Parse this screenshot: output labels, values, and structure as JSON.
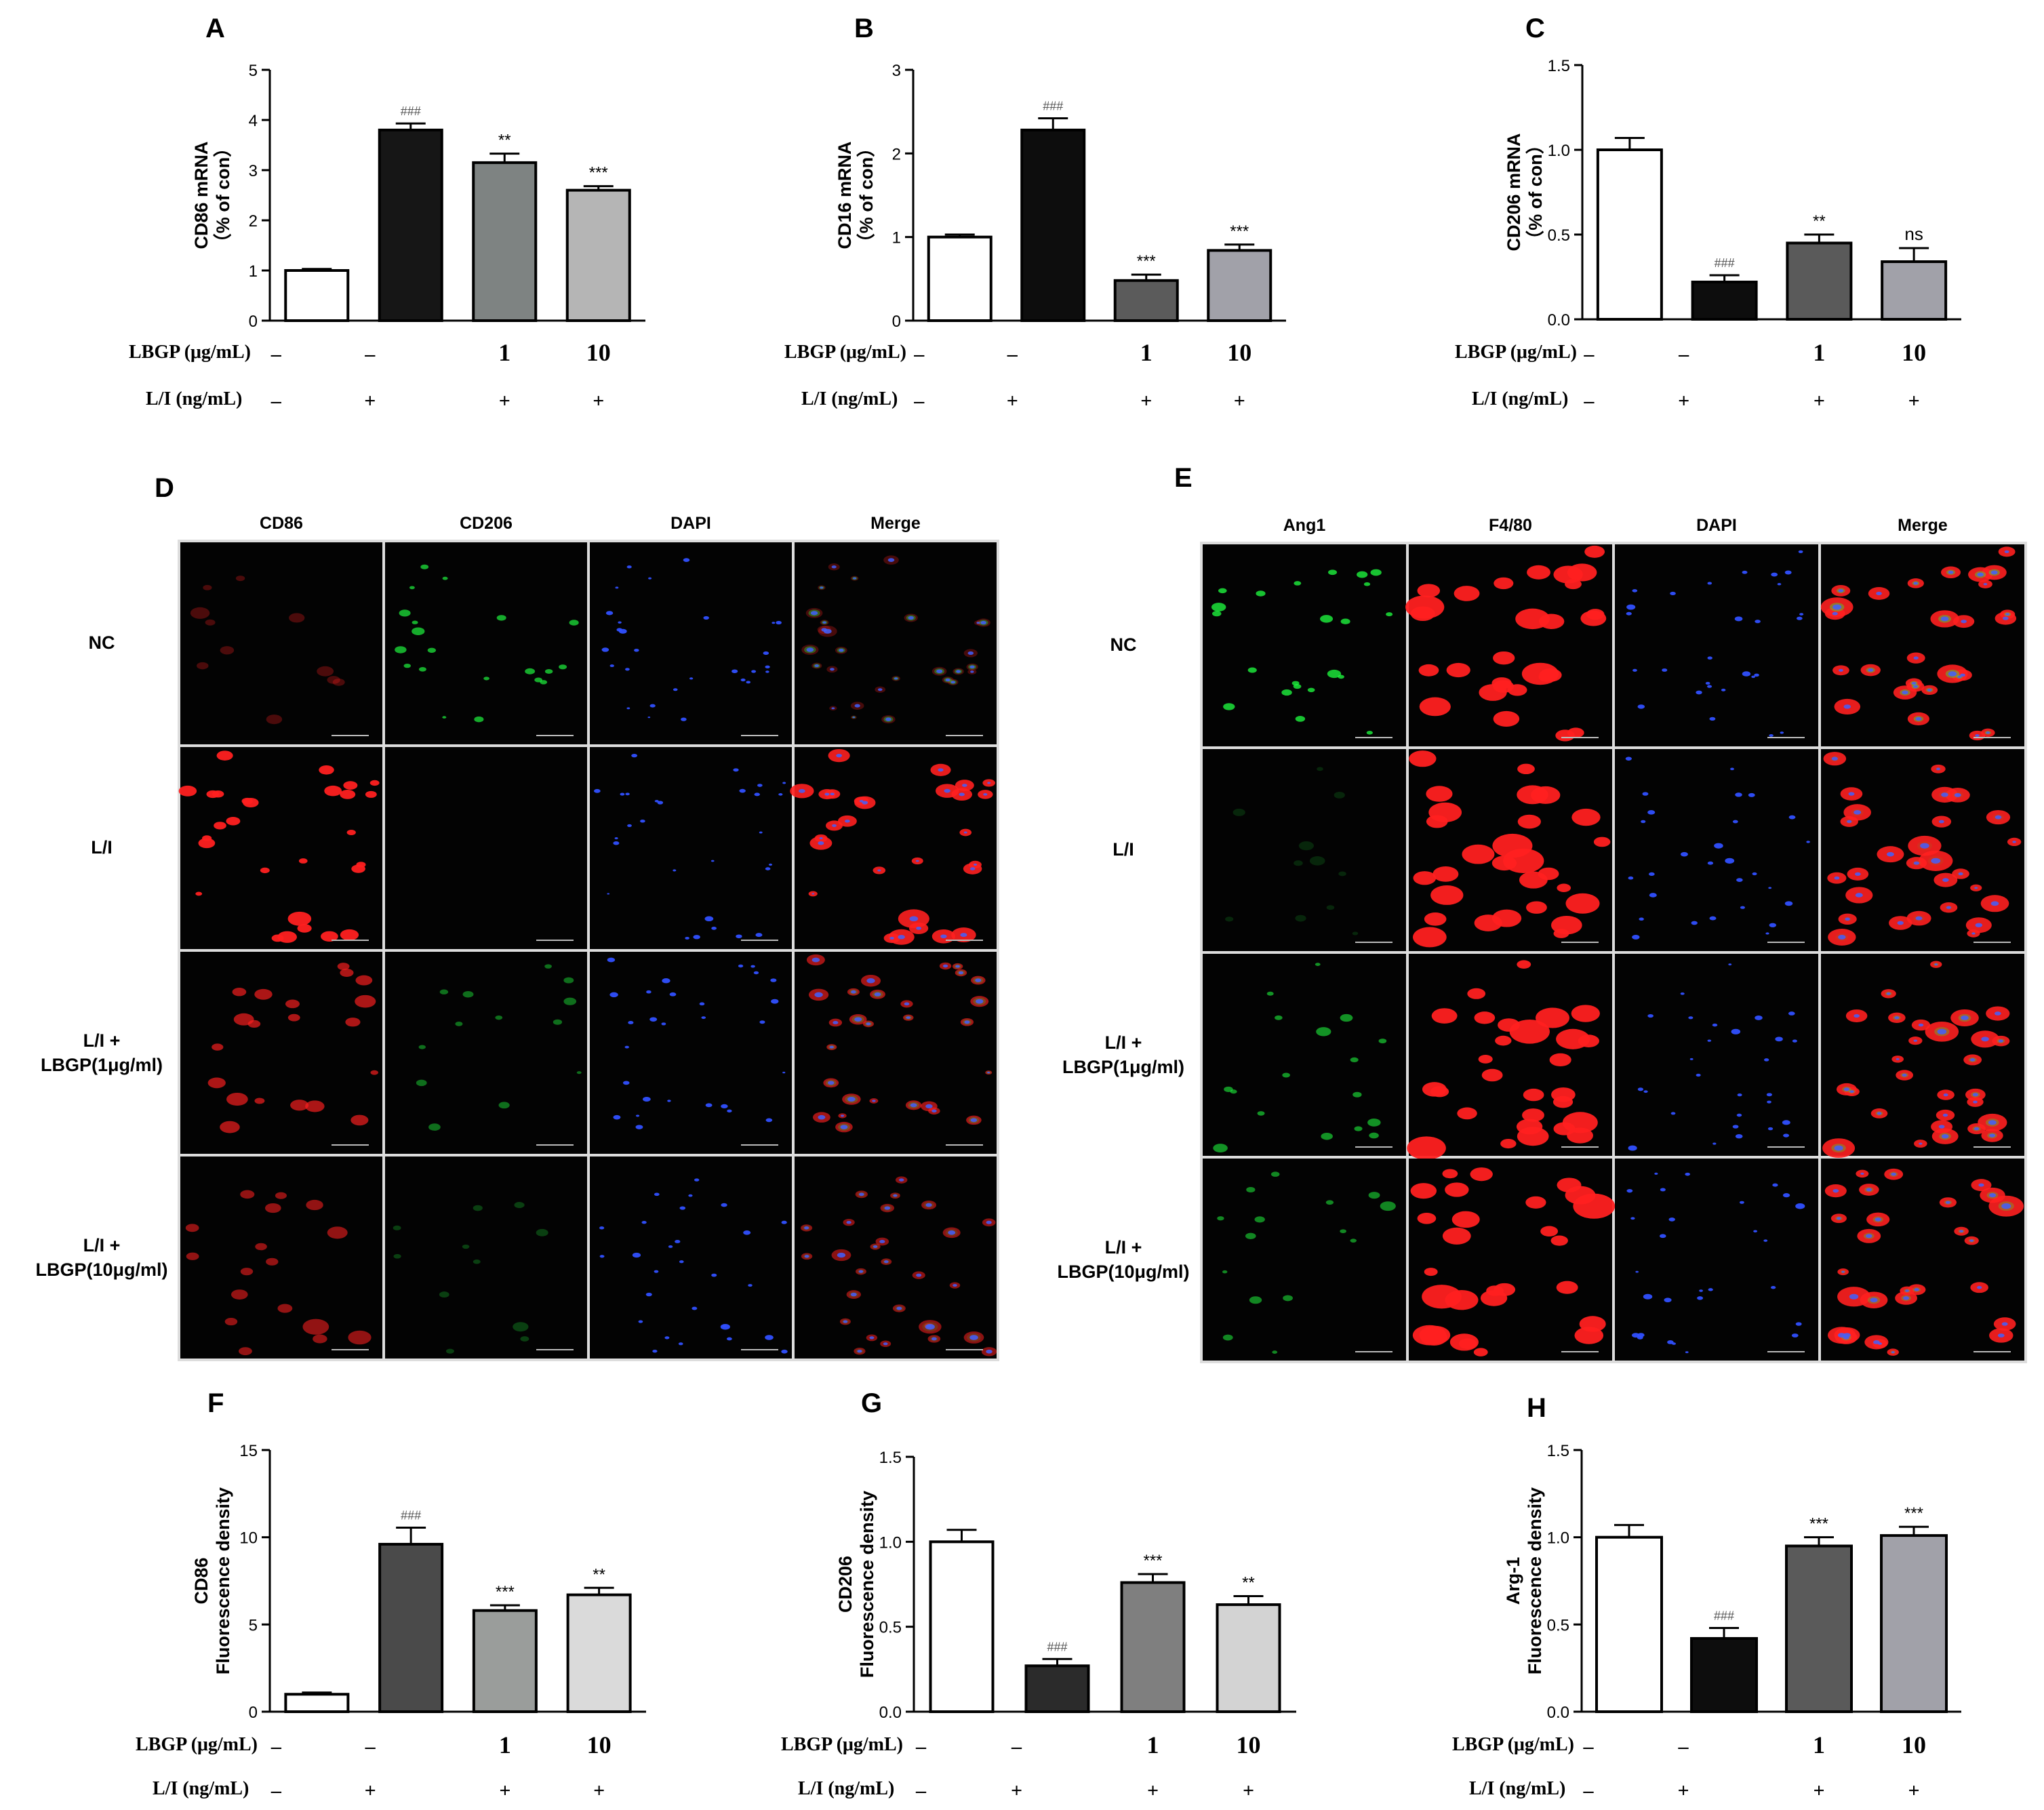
{
  "figure": {
    "x_rows": {
      "lbgp_label": "LBGP (μg/mL)",
      "li_label": "L/I (ng/mL)",
      "lbgp_values": [
        "–",
        "–",
        "1",
        "10"
      ],
      "li_values": [
        "–",
        "+",
        "+",
        "+"
      ]
    }
  },
  "chart_data": [
    {
      "panel": "A",
      "type": "bar",
      "categories": [
        "NC",
        "L/I",
        "L/I + LBGP 1",
        "L/I + LBGP 10"
      ],
      "values": [
        1.0,
        3.8,
        3.15,
        2.6
      ],
      "errors": [
        0.03,
        0.13,
        0.18,
        0.08
      ],
      "ylabel_lines": [
        "CD86 mRNA",
        "（% of con）"
      ],
      "ylim": [
        0,
        5
      ],
      "yticks": [
        "0",
        "1",
        "2",
        "3",
        "4",
        "5"
      ],
      "annotations": [
        "",
        "###",
        "**",
        "***"
      ],
      "colors": [
        "#ffffff",
        "#161616",
        "#7e8382",
        "#b5b5b5"
      ]
    },
    {
      "panel": "B",
      "type": "bar",
      "categories": [
        "NC",
        "L/I",
        "L/I + LBGP 1",
        "L/I + LBGP 10"
      ],
      "values": [
        1.0,
        2.28,
        0.48,
        0.84
      ],
      "errors": [
        0.03,
        0.14,
        0.07,
        0.07
      ],
      "ylabel_lines": [
        "CD16 mRNA",
        "（% of con）"
      ],
      "ylim": [
        0,
        3
      ],
      "yticks": [
        "0",
        "1",
        "2",
        "3"
      ],
      "annotations": [
        "",
        "###",
        "***",
        "***"
      ],
      "colors": [
        "#ffffff",
        "#0d0d0d",
        "#5b5b5b",
        "#a1a1a9"
      ]
    },
    {
      "panel": "C",
      "type": "bar",
      "categories": [
        "NC",
        "L/I",
        "L/I + LBGP 1",
        "L/I + LBGP 10"
      ],
      "values": [
        1.0,
        0.22,
        0.45,
        0.34
      ],
      "errors": [
        0.07,
        0.04,
        0.05,
        0.08
      ],
      "ylabel_lines": [
        "CD206 mRNA",
        "（% of con）"
      ],
      "ylim": [
        0,
        1.5
      ],
      "yticks": [
        "0.0",
        "0.5",
        "1.0",
        "1.5"
      ],
      "annotations": [
        "",
        "###",
        "**",
        "ns"
      ],
      "colors": [
        "#ffffff",
        "#0d0d0d",
        "#5a5a5a",
        "#a1a1a9"
      ]
    },
    {
      "panel": "F",
      "type": "bar",
      "categories": [
        "NC",
        "L/I",
        "L/I + LBGP 1",
        "L/I + LBGP 10"
      ],
      "values": [
        1.0,
        9.6,
        5.8,
        6.7
      ],
      "errors": [
        0.1,
        0.95,
        0.3,
        0.4
      ],
      "ylabel_lines": [
        "CD86",
        "Fluorescence density"
      ],
      "ylim": [
        0,
        15
      ],
      "yticks": [
        "0",
        "5",
        "10",
        "15"
      ],
      "annotations": [
        "",
        "###",
        "***",
        "**"
      ],
      "colors": [
        "#ffffff",
        "#4a4a4a",
        "#9a9d9b",
        "#dadada"
      ]
    },
    {
      "panel": "G",
      "type": "bar",
      "categories": [
        "NC",
        "L/I",
        "L/I + LBGP 1",
        "L/I + LBGP 10"
      ],
      "values": [
        1.0,
        0.27,
        0.76,
        0.63
      ],
      "errors": [
        0.07,
        0.04,
        0.05,
        0.05
      ],
      "ylabel_lines": [
        "CD206",
        "Fluorescence density"
      ],
      "ylim": [
        0,
        1.5
      ],
      "yticks": [
        "0.0",
        "0.5",
        "1.0",
        "1.5"
      ],
      "annotations": [
        "",
        "###",
        "***",
        "**"
      ],
      "colors": [
        "#ffffff",
        "#2b2b2b",
        "#7f7f7f",
        "#d3d3d3"
      ]
    },
    {
      "panel": "H",
      "type": "bar",
      "categories": [
        "NC",
        "L/I",
        "L/I + LBGP 1",
        "L/I + LBGP 10"
      ],
      "values": [
        1.0,
        0.42,
        0.95,
        1.01
      ],
      "errors": [
        0.07,
        0.06,
        0.05,
        0.05
      ],
      "ylabel_lines": [
        "Arg-1",
        "Fluorescence density"
      ],
      "ylim": [
        0,
        1.5
      ],
      "yticks": [
        "0.0",
        "0.5",
        "1.0",
        "1.5"
      ],
      "annotations": [
        "",
        "###",
        "***",
        "***"
      ],
      "colors": [
        "#ffffff",
        "#0d0d0d",
        "#5a5a5a",
        "#a1a1a9"
      ]
    }
  ],
  "micrographs": [
    {
      "panel": "D",
      "columns": [
        "CD86",
        "CD206",
        "DAPI",
        "Merge"
      ],
      "rows": [
        [
          "NC"
        ],
        [
          "L/I"
        ],
        [
          "L/I +",
          "LBGP(1μg/ml)"
        ],
        [
          "L/I +",
          "LBGP(10μg/ml)"
        ]
      ],
      "channel_colors": [
        "#ff2020",
        "#20ff40",
        "#3050ff",
        "merge"
      ],
      "channel_intensity": [
        [
          0.3,
          0.7,
          1.0,
          1.0
        ],
        [
          1.0,
          0.0,
          1.0,
          1.0
        ],
        [
          0.7,
          0.45,
          1.0,
          1.0
        ],
        [
          0.6,
          0.25,
          1.0,
          1.0
        ]
      ]
    },
    {
      "panel": "E",
      "columns": [
        "Ang1",
        "F4/80",
        "DAPI",
        "Merge"
      ],
      "rows": [
        [
          "NC"
        ],
        [
          "L/I"
        ],
        [
          "L/I +",
          "LBGP(1μg/ml)"
        ],
        [
          "L/I +",
          "LBGP(10μg/ml)"
        ]
      ],
      "channel_colors": [
        "#20ff40",
        "#ff2020",
        "#3050ff",
        "merge"
      ],
      "channel_intensity": [
        [
          0.8,
          1.0,
          1.0,
          1.0
        ],
        [
          0.15,
          1.0,
          1.0,
          1.0
        ],
        [
          0.6,
          1.0,
          1.0,
          1.0
        ],
        [
          0.55,
          1.0,
          1.0,
          1.0
        ]
      ]
    }
  ]
}
